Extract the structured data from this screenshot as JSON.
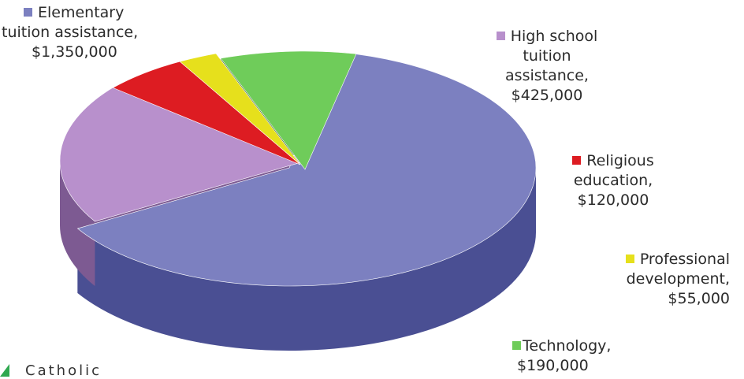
{
  "chart_data": {
    "type": "pie",
    "title": "",
    "series": [
      {
        "name": "Elementary tuition assistance",
        "value": 1350000,
        "label_lines": [
          "Elementary",
          "tuition assistance,",
          "$1,350,000"
        ],
        "color": "#7c80c0",
        "color_side": "#4a4f93"
      },
      {
        "name": "High school tuition assistance",
        "value": 425000,
        "label_lines": [
          "High school",
          "tuition",
          "assistance,",
          "$425,000"
        ],
        "color": "#b890cc",
        "color_side": "#7d5a92"
      },
      {
        "name": "Religious education",
        "value": 120000,
        "label_lines": [
          "Religious",
          "education,",
          "$120,000"
        ],
        "color": "#dd1c22",
        "color_side": "#8e0f13"
      },
      {
        "name": "Professional development",
        "value": 55000,
        "label_lines": [
          "Professional",
          "development,",
          "$55,000"
        ],
        "color": "#e6e01c",
        "color_side": "#9a9410"
      },
      {
        "name": "Technology",
        "value": 190000,
        "label_lines": [
          "Technology,",
          "$190,000"
        ],
        "color": "#6fcc5a",
        "color_side": "#27501e"
      }
    ]
  },
  "footer": {
    "text": "Catholic"
  }
}
